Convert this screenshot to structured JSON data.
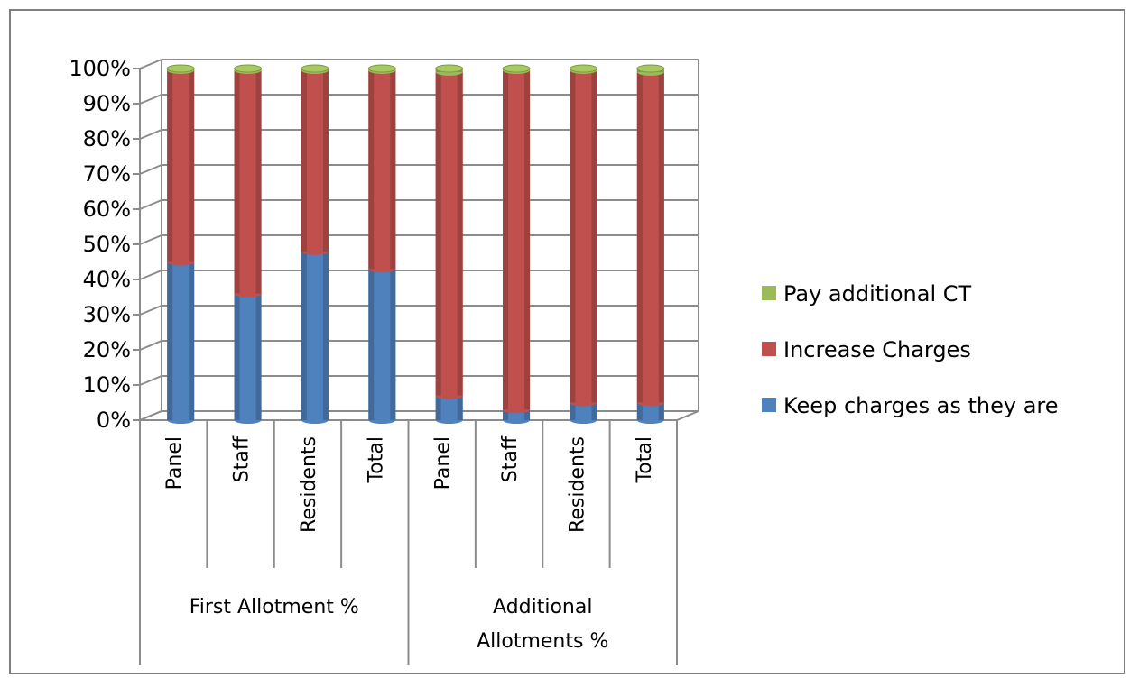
{
  "chart_data": {
    "type": "bar",
    "stacked": true,
    "percent": true,
    "title": "",
    "xlabel": "",
    "ylabel": "",
    "ylim": [
      0,
      100
    ],
    "yticks": [
      "0%",
      "10%",
      "20%",
      "30%",
      "40%",
      "50%",
      "60%",
      "70%",
      "80%",
      "90%",
      "100%"
    ],
    "groups": [
      {
        "label": "First Allotment %",
        "categories": [
          "Panel",
          "Staff",
          "Residents",
          "Total"
        ]
      },
      {
        "label": "Additional Allotments %",
        "categories": [
          "Panel",
          "Staff",
          "Residents",
          "Total"
        ]
      }
    ],
    "categories": [
      "Panel",
      "Staff",
      "Residents",
      "Total",
      "Panel",
      "Staff",
      "Residents",
      "Total"
    ],
    "series": [
      {
        "name": "Keep charges as they are",
        "color": "#4f81bd",
        "values": [
          45,
          36,
          48,
          43,
          7,
          3,
          5,
          5
        ]
      },
      {
        "name": "Increase Charges",
        "color": "#c0504d",
        "values": [
          54.5,
          63.5,
          51.5,
          56.5,
          92,
          96.5,
          94.5,
          94
        ]
      },
      {
        "name": "Pay additional CT",
        "color": "#9bbb59",
        "values": [
          0.5,
          0.5,
          0.5,
          0.5,
          1,
          0.5,
          0.5,
          1
        ]
      }
    ],
    "legend_position": "right",
    "grid": true
  }
}
